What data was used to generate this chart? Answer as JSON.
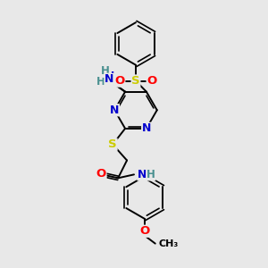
{
  "background_color": "#e8e8e8",
  "atom_colors": {
    "C": "#000000",
    "N": "#0000cd",
    "O": "#ff0000",
    "S": "#cccc00",
    "H": "#4a9090"
  },
  "bond_color": "#000000",
  "figsize": [
    3.0,
    3.0
  ],
  "dpi": 100
}
